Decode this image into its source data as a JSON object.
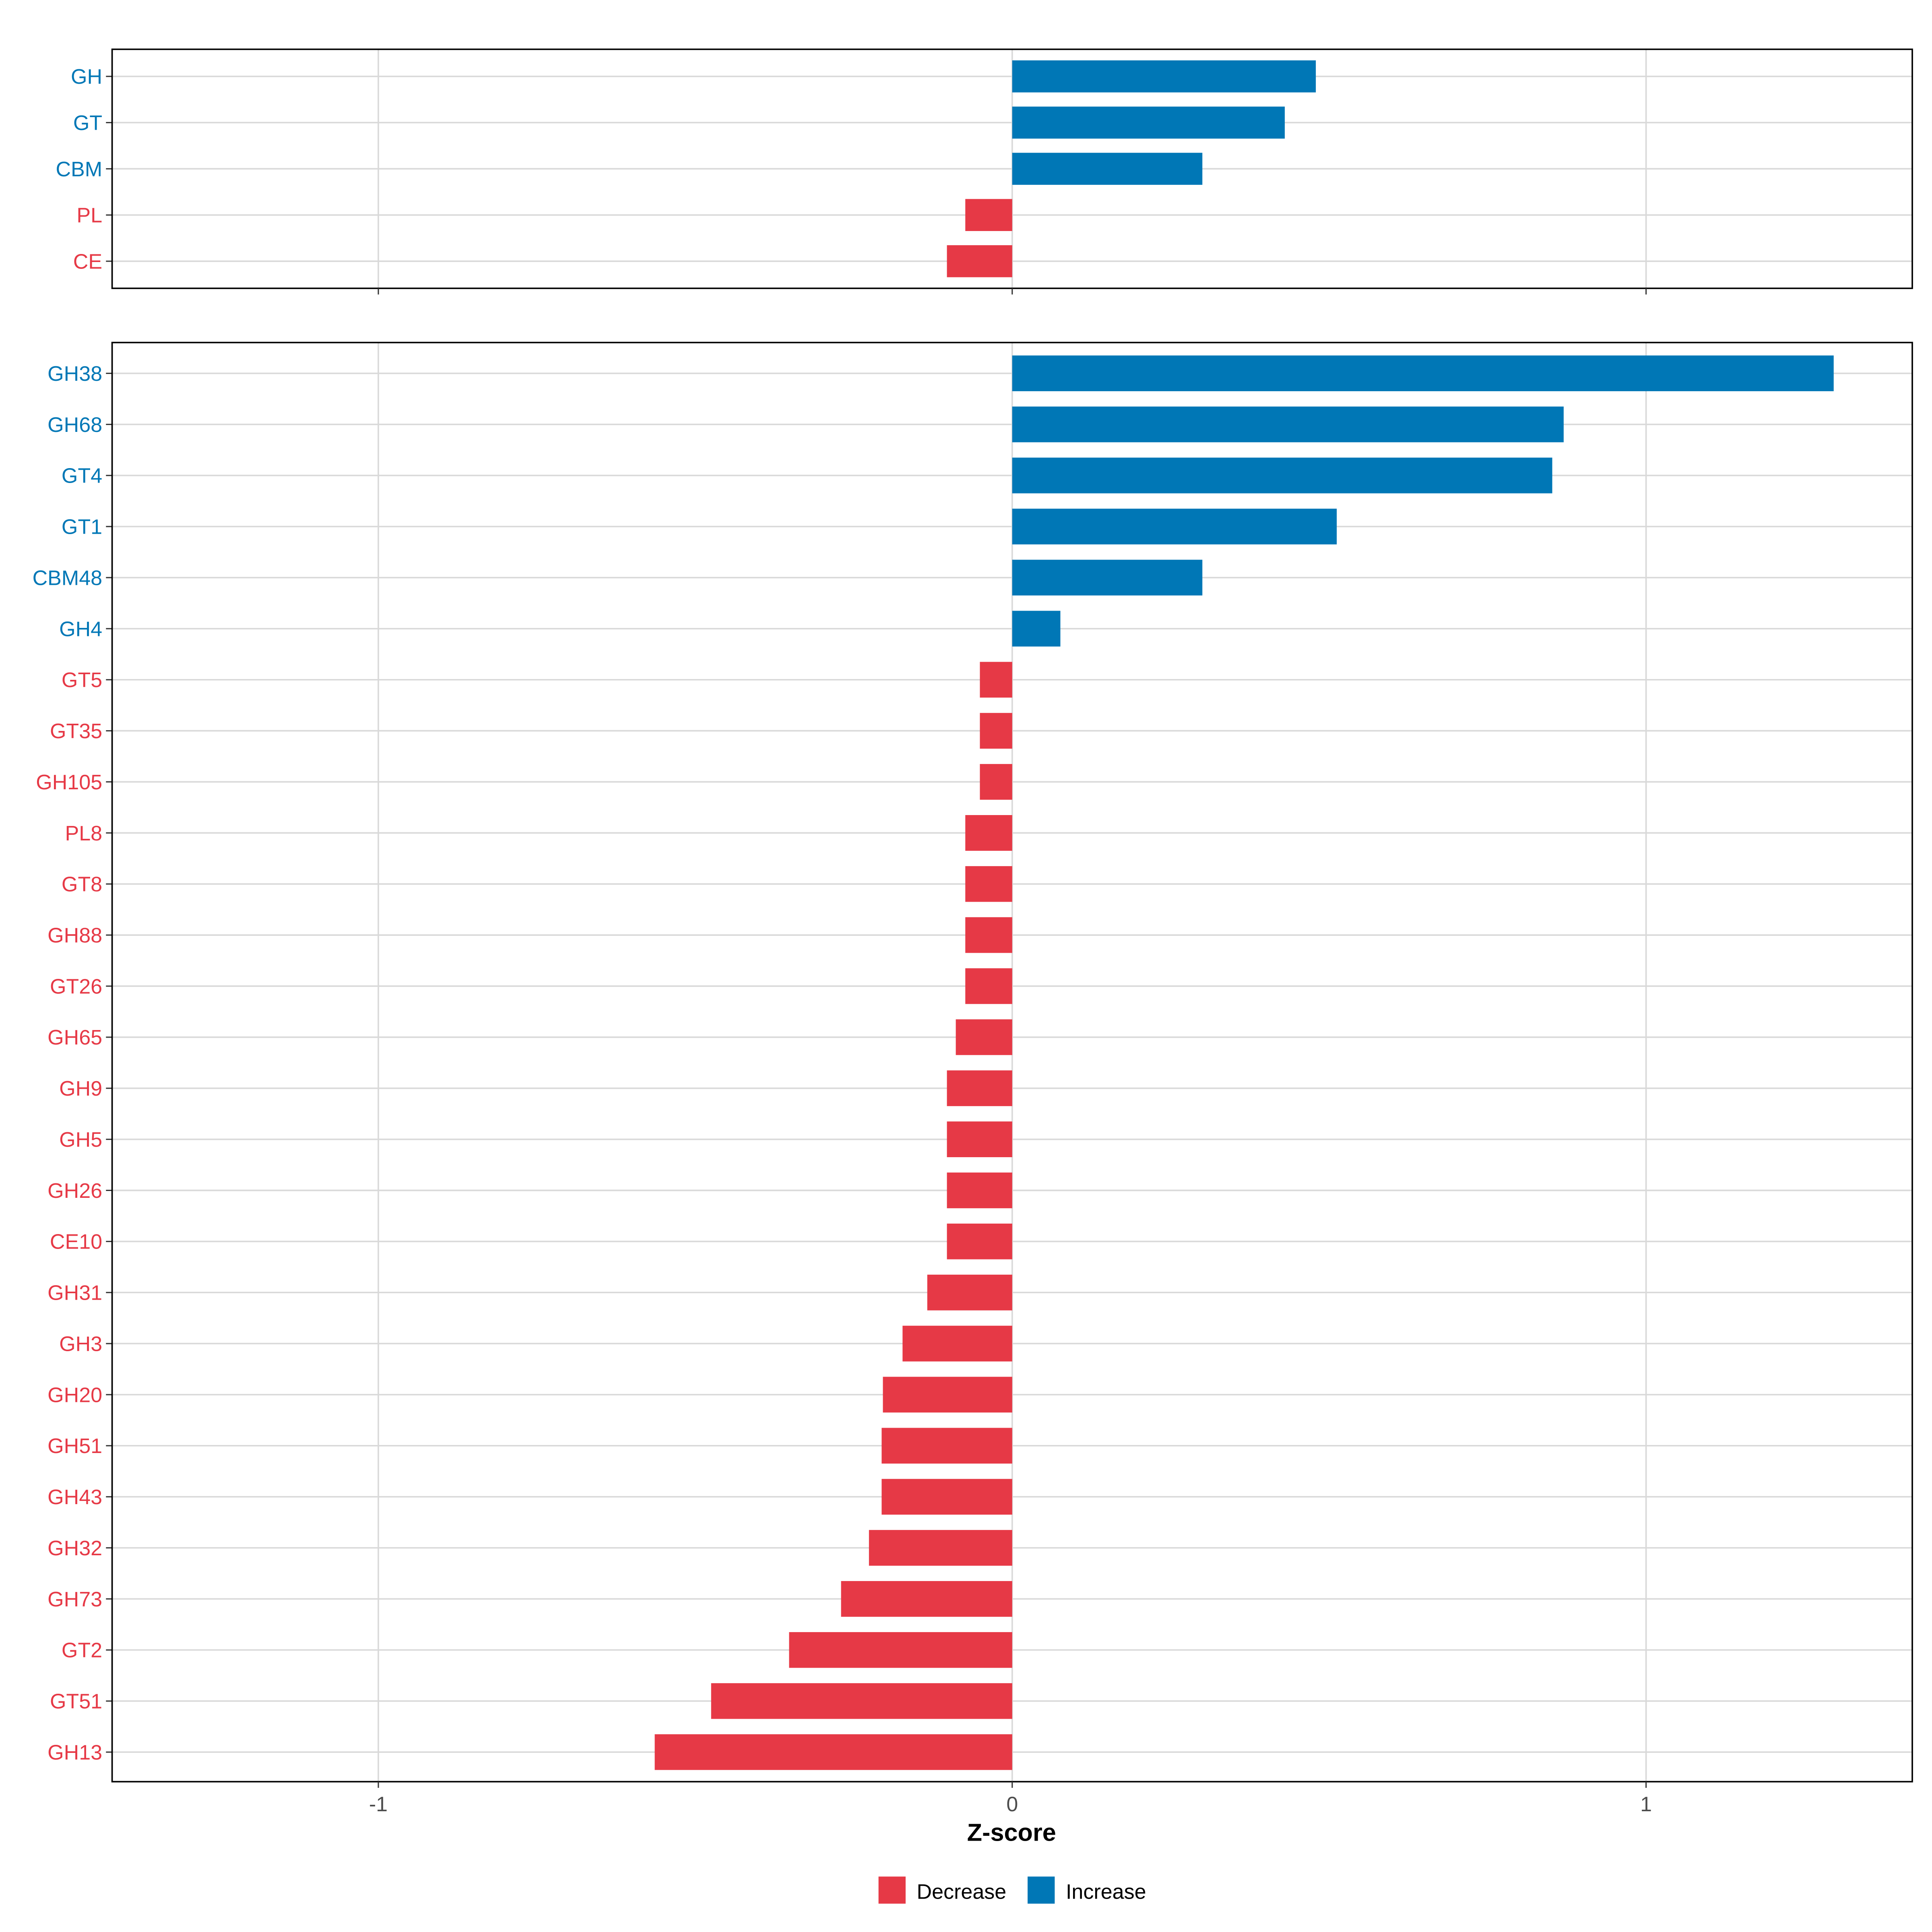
{
  "chart_data": [
    {
      "type": "bar",
      "orientation": "horizontal",
      "panel": "top",
      "categories": [
        "GH",
        "GT",
        "CBM",
        "PL",
        "CE"
      ],
      "values": [
        0.479,
        0.43,
        0.3,
        -0.074,
        -0.103
      ],
      "xlim": [
        -1.42,
        1.42
      ],
      "grid": true
    },
    {
      "type": "bar",
      "orientation": "horizontal",
      "panel": "bottom",
      "categories": [
        "GH38",
        "GH68",
        "GT4",
        "GT1",
        "CBM48",
        "GH4",
        "GT5",
        "GT35",
        "GH105",
        "PL8",
        "GT8",
        "GH88",
        "GT26",
        "GH65",
        "GH9",
        "GH5",
        "GH26",
        "CE10",
        "GH31",
        "GH3",
        "GH20",
        "GH51",
        "GH43",
        "GH32",
        "GH73",
        "GT2",
        "GT51",
        "GH13"
      ],
      "values": [
        1.296,
        0.87,
        0.852,
        0.512,
        0.3,
        0.076,
        -0.051,
        -0.051,
        -0.051,
        -0.074,
        -0.074,
        -0.074,
        -0.074,
        -0.089,
        -0.103,
        -0.103,
        -0.103,
        -0.103,
        -0.134,
        -0.173,
        -0.204,
        -0.206,
        -0.206,
        -0.226,
        -0.27,
        -0.352,
        -0.475,
        -0.564
      ],
      "xlim": [
        -1.42,
        1.42
      ],
      "xticks": [
        -1,
        0,
        1
      ],
      "xtick_labels": [
        "-1",
        "0",
        "1"
      ],
      "xlabel": "Z-score",
      "grid": true
    }
  ],
  "legend": {
    "placement": "bottom",
    "items": [
      {
        "label": "Decrease",
        "color": "#e63946"
      },
      {
        "label": "Increase",
        "color": "#0077b6"
      }
    ]
  },
  "colors": {
    "increase": "#0077b6",
    "decrease": "#e63946",
    "grid": "#d9d9d9"
  }
}
